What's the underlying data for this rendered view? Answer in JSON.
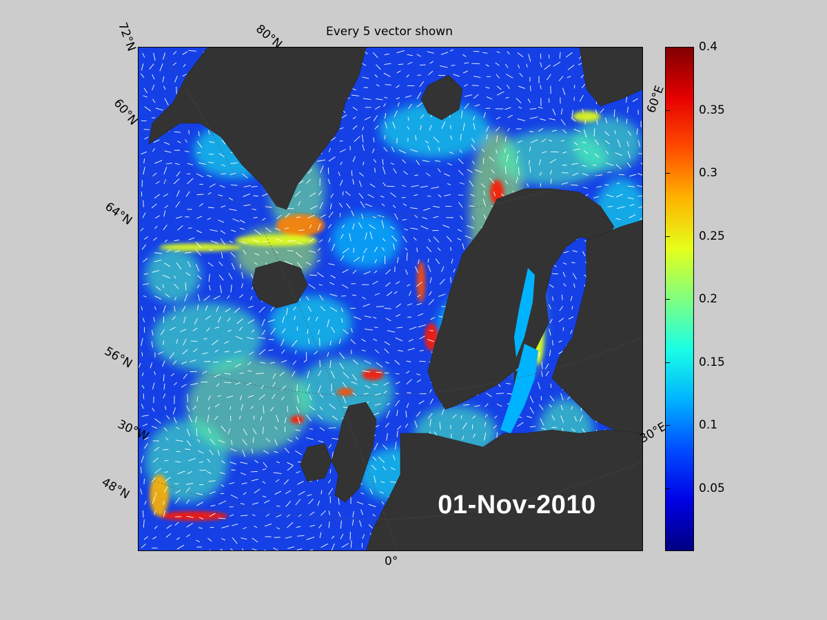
{
  "map": {
    "title": "Every 5 vector shown",
    "date": "01-Nov-2010",
    "lat_labels": [
      "72°N",
      "60°N",
      "64°N",
      "56°N",
      "48°N"
    ],
    "partial_lat_labels": [
      "80°N"
    ],
    "lon_labels": [
      "60°E",
      "30°E",
      "0°"
    ],
    "partial_lon_labels": [
      "30°W"
    ],
    "land_color": "#333333",
    "water_low_color": "#0000d0",
    "vector_color": "#ffffff"
  },
  "colorbar": {
    "min": 0,
    "max": 0.4,
    "ticks": [
      "0.4",
      "0.35",
      "0.3",
      "0.25",
      "0.2",
      "0.15",
      "0.1",
      "0.05"
    ],
    "colormap": "jet"
  }
}
